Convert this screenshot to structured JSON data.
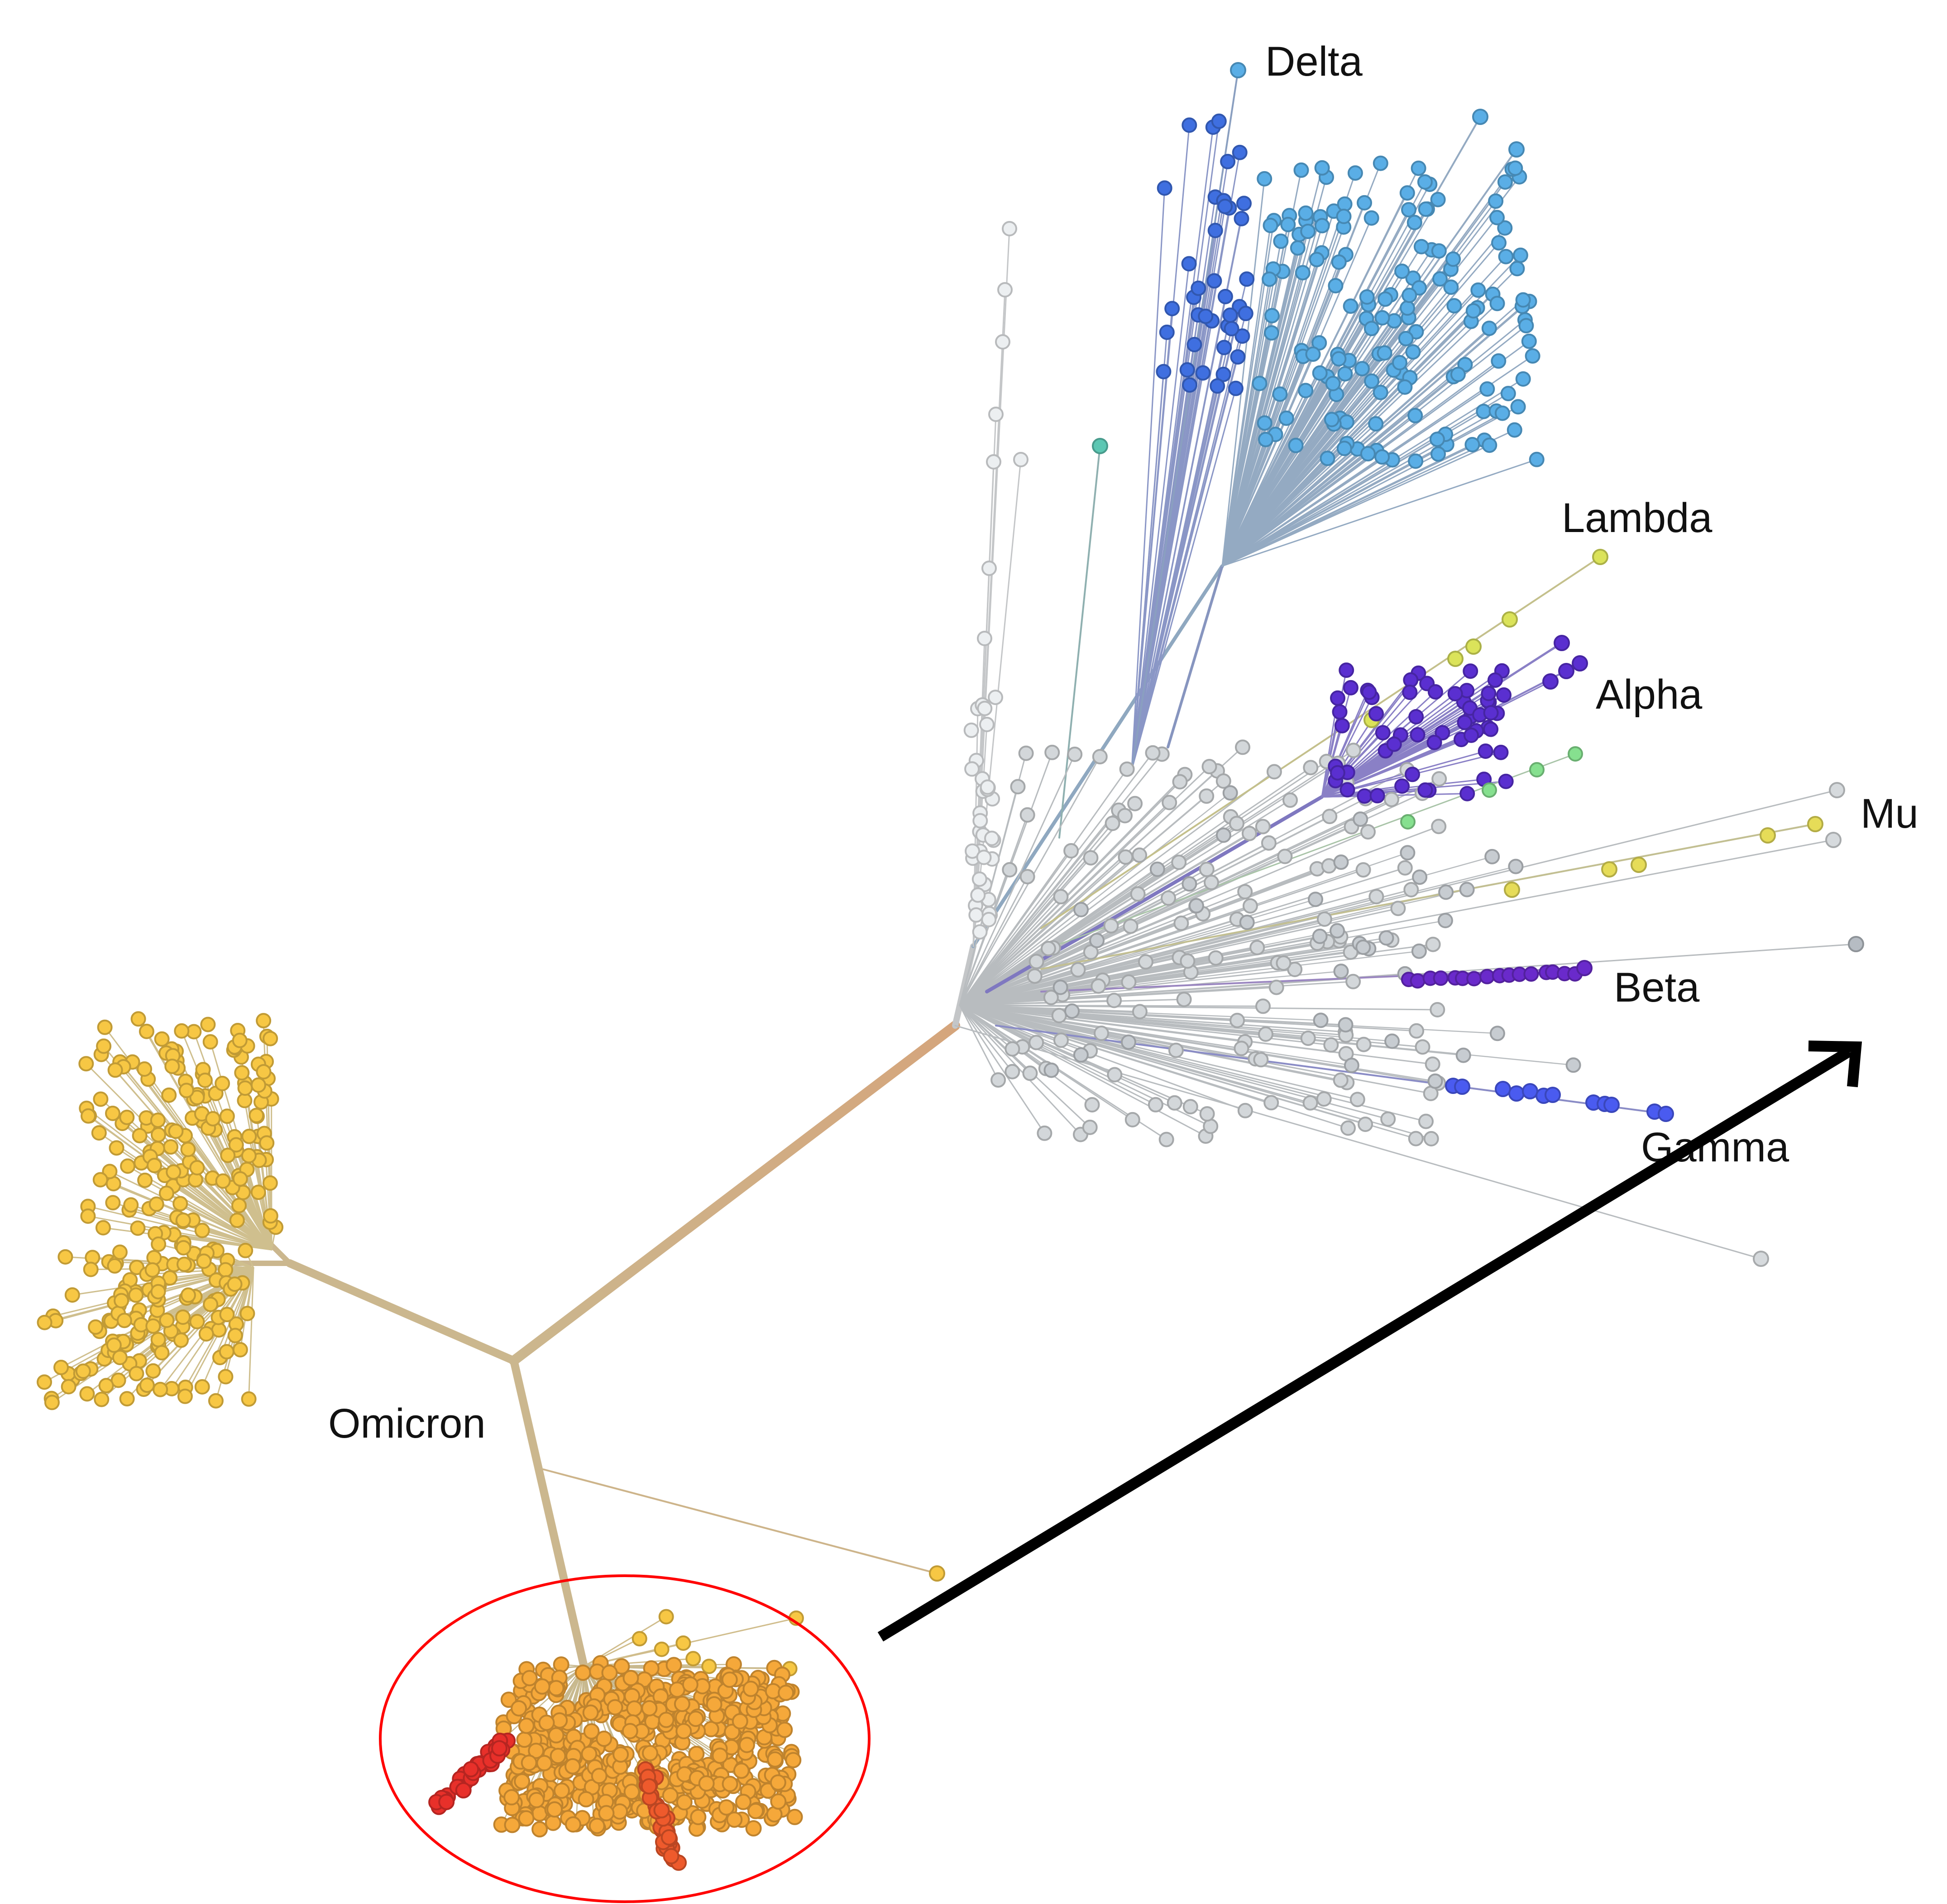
{
  "tree": {
    "labels": {
      "delta": "Delta",
      "lambda": "Lambda",
      "alpha": "Alpha",
      "mu": "Mu",
      "beta": "Beta",
      "gamma": "Gamma",
      "omicron": "Omicron"
    },
    "colors": {
      "delta": "#5aaee6",
      "delta_dark": "#3f6fe0",
      "alpha": "#5a2fd0",
      "beta": "#6a2acb",
      "gamma": "#4a5bf0",
      "lambda": "#dbe35a",
      "mu": "#e6dc58",
      "omicron": "#f7c744",
      "omicron_sub": "#f5a83a",
      "omicron_red": "#e8302a",
      "other": "#d0d4d8",
      "trunk_start": "#cdb98c",
      "trunk_end": "#d6a57a",
      "highlight": "#ff0000",
      "arrow": "#000000"
    }
  }
}
